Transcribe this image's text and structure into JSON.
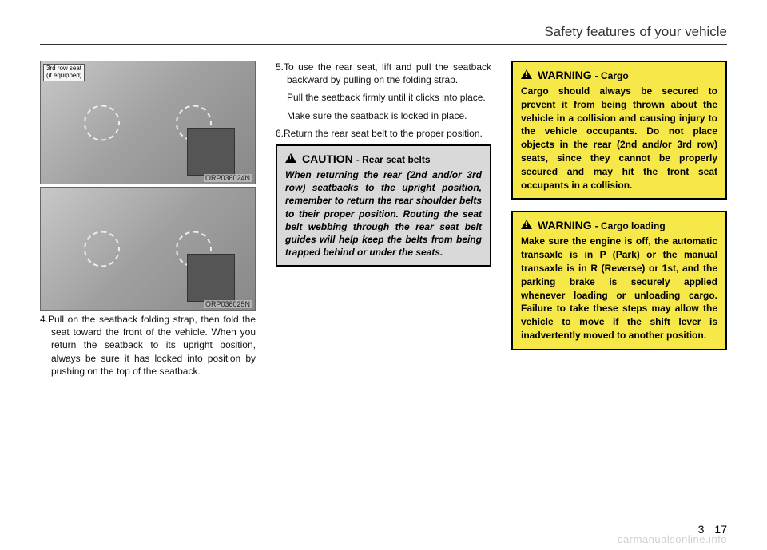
{
  "header": {
    "title": "Safety features of your vehicle"
  },
  "col1": {
    "fig1": {
      "top_label": "3rd row seat\n(if equipped)",
      "code": "ORP036024N"
    },
    "fig2": {
      "code": "ORP036025N"
    },
    "para1": "4.Pull on the seatback folding strap, then fold the seat toward the front of the vehicle. When you return the seatback to its upright position, always be sure it has locked into position by pushing on the top of the seatback."
  },
  "col2": {
    "para1": "5.To use the rear seat, lift and pull the seatback backward by pulling on the folding strap.",
    "para2": "Pull the seatback firmly until it clicks into place.",
    "para3": "Make sure the seatback is locked in place.",
    "para4": "6.Return the rear seat belt to the proper position.",
    "caution": {
      "label": "CAUTION",
      "sub": "- Rear seat belts",
      "body": "When returning the rear (2nd and/or 3rd row) seatbacks to the upright position, remember to return the rear shoulder belts to their proper position. Routing the seat belt webbing through the rear seat belt guides will help keep the belts from being trapped behind or under the seats."
    }
  },
  "col3": {
    "warn1": {
      "label": "WARNING",
      "sub": "- Cargo",
      "body": "Cargo should always be secured to prevent it from being thrown about the vehicle in a collision and causing injury to the vehicle occupants. Do not place objects in the rear (2nd and/or 3rd row) seats, since they cannot be properly secured and may hit the front seat occupants in a collision."
    },
    "warn2": {
      "label": "WARNING",
      "sub": "- Cargo loading",
      "body": "Make sure the engine is off, the automatic transaxle is in P (Park) or the manual transaxle is in R (Reverse) or 1st, and the parking brake is securely applied whenever loading or unloading cargo. Failure to take these steps may allow the vehicle to move if the shift lever is inadvertently moved to another position."
    }
  },
  "footer": {
    "section": "3",
    "page": "17"
  },
  "watermark": "carmanualsonline.info"
}
